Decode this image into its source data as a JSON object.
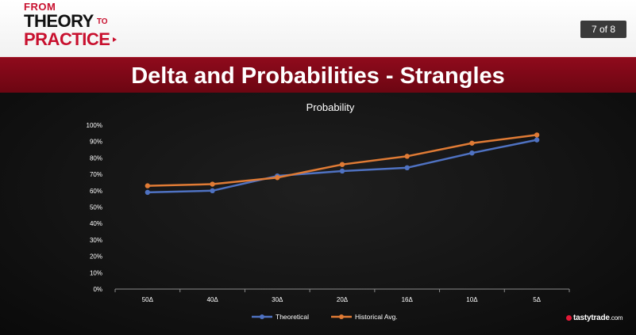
{
  "header": {
    "logo": {
      "from": "FROM",
      "theory": "THEORY",
      "to": "TO",
      "practice": "PRACTICE"
    },
    "page_counter": "7 of 8"
  },
  "title": "Delta and Probabilities - Strangles",
  "watermark": {
    "brand": "tastytrade",
    "suffix": ".com"
  },
  "colors": {
    "accent": "#8b0a1c",
    "series_theoretical": "#4f72c2",
    "series_historical": "#e07b35"
  },
  "chart_data": {
    "type": "line",
    "title": "Probability",
    "categories": [
      "50Δ",
      "40Δ",
      "30Δ",
      "20Δ",
      "16Δ",
      "10Δ",
      "5Δ"
    ],
    "series": [
      {
        "name": "Theoretical",
        "values": [
          59,
          60,
          69,
          72,
          74,
          83,
          91
        ]
      },
      {
        "name": "Historical Avg.",
        "values": [
          63,
          64,
          68,
          76,
          81,
          89,
          94
        ]
      }
    ],
    "y_ticks": [
      "0%",
      "10%",
      "20%",
      "30%",
      "40%",
      "50%",
      "60%",
      "70%",
      "80%",
      "90%",
      "100%"
    ],
    "ylim": [
      0,
      100
    ],
    "y_unit": "%",
    "grid": false,
    "legend_position": "bottom"
  }
}
